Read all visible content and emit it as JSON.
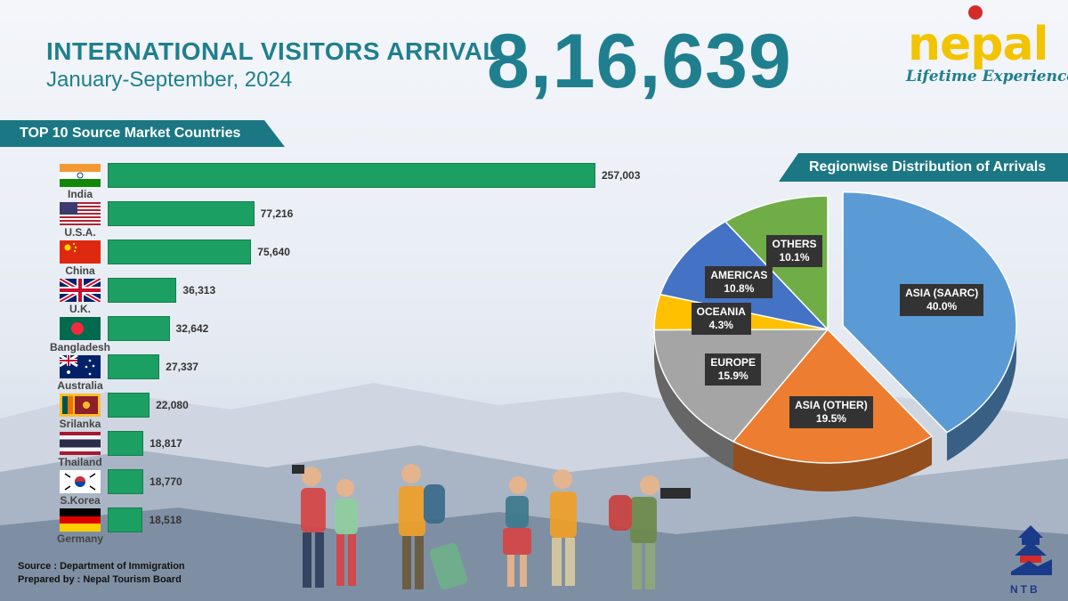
{
  "header": {
    "title": "INTERNATIONAL VISITORS ARRIVAL",
    "period": "January-September, 2024",
    "total": "8,16,639"
  },
  "logo": {
    "word": "nepal",
    "tagline": "Lifetime Experiences!",
    "org": "NTB"
  },
  "footer": {
    "source": "Source : Department of Immigration",
    "prepared": "Prepared by : Nepal Tourism Board"
  },
  "colors": {
    "bar": "#1c9f62",
    "banner": "#1b7784",
    "title": "#1f7f8e"
  },
  "chart_data": [
    {
      "type": "bar",
      "orientation": "horizontal",
      "title": "TOP 10 Source Market Countries",
      "categories": [
        "India",
        "U.S.A.",
        "China",
        "U.K.",
        "Bangladesh",
        "Australia",
        "Srilanka",
        "Thailand",
        "S.Korea",
        "Germany"
      ],
      "values": [
        257003,
        77216,
        75640,
        36313,
        32642,
        27337,
        22080,
        18817,
        18770,
        18518
      ],
      "value_labels": [
        "257,003",
        "77,216",
        "75,640",
        "36,313",
        "32,642",
        "27,337",
        "22,080",
        "18,817",
        "18,770",
        "18,518"
      ],
      "flag_icons": [
        "india-flag-icon",
        "usa-flag-icon",
        "china-flag-icon",
        "uk-flag-icon",
        "bangladesh-flag-icon",
        "australia-flag-icon",
        "srilanka-flag-icon",
        "thailand-flag-icon",
        "south-korea-flag-icon",
        "germany-flag-icon"
      ]
    },
    {
      "type": "pie",
      "title": "Regionwise Distribution of Arrivals",
      "slices": [
        {
          "label": "ASIA (SAARC)",
          "value": 40.0,
          "pct": "40.0%",
          "color": "#5b9bd5"
        },
        {
          "label": "ASIA (OTHER)",
          "value": 19.5,
          "pct": "19.5%",
          "color": "#ed7d31"
        },
        {
          "label": "EUROPE",
          "value": 15.9,
          "pct": "15.9%",
          "color": "#a5a5a5"
        },
        {
          "label": "OCEANIA",
          "value": 4.3,
          "pct": "4.3%",
          "color": "#ffc000"
        },
        {
          "label": "AMERICAS",
          "value": 10.8,
          "pct": "10.8%",
          "color": "#4472c4"
        },
        {
          "label": "OTHERS",
          "value": 10.1,
          "pct": "10.1%",
          "color": "#70ad47"
        }
      ],
      "exploded": "ASIA (SAARC)",
      "style": "3d"
    }
  ]
}
